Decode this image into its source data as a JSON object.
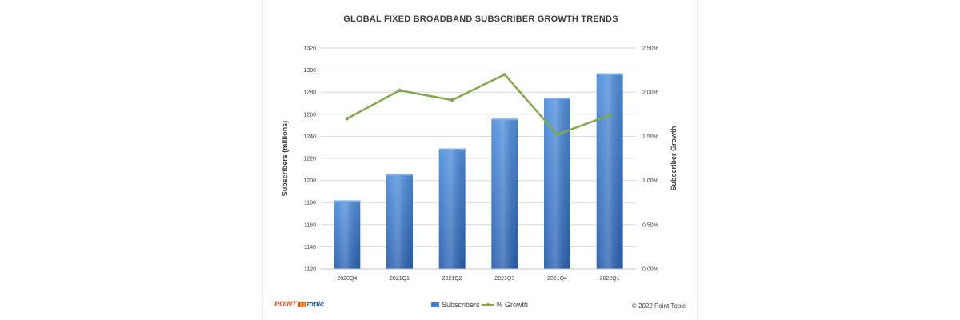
{
  "logo": {
    "brand": "POINT",
    "sub": "topic"
  },
  "copyright": "© 2022 Point Topic",
  "legend": {
    "bars_label": "Subscribers",
    "line_label": "% Growth"
  },
  "colors": {
    "bars": "#3f7fcf",
    "line": "#82a94a",
    "grid": "#d9d9d9",
    "brand": "#e8481c"
  },
  "chart_data": {
    "type": "bar",
    "title": "GLOBAL FIXED BROADBAND SUBSCRIBER GROWTH TRENDS",
    "xlabel": "",
    "ylabel": "Subscribers (millions)",
    "y2label": "Subscriber Growth",
    "categories": [
      "2020Q4",
      "2021Q1",
      "2021Q2",
      "2021Q3",
      "2021Q4",
      "2022Q1"
    ],
    "ylim": [
      1120,
      1320
    ],
    "y2lim": [
      0.0,
      2.5
    ],
    "yticks": [
      1120,
      1140,
      1160,
      1180,
      1200,
      1220,
      1240,
      1260,
      1280,
      1300,
      1320
    ],
    "y2ticks": [
      "0.00%",
      "0.50%",
      "1.00%",
      "1.50%",
      "2.00%",
      "2.50%"
    ],
    "grid": true,
    "legend_position": "bottom",
    "series": [
      {
        "name": "Subscribers",
        "type": "bar",
        "axis": "left",
        "values": [
          1182,
          1206,
          1229,
          1256,
          1275,
          1297
        ]
      },
      {
        "name": "% Growth",
        "type": "line",
        "axis": "right",
        "values": [
          1.7,
          2.02,
          1.91,
          2.2,
          1.52,
          1.74
        ]
      }
    ]
  }
}
